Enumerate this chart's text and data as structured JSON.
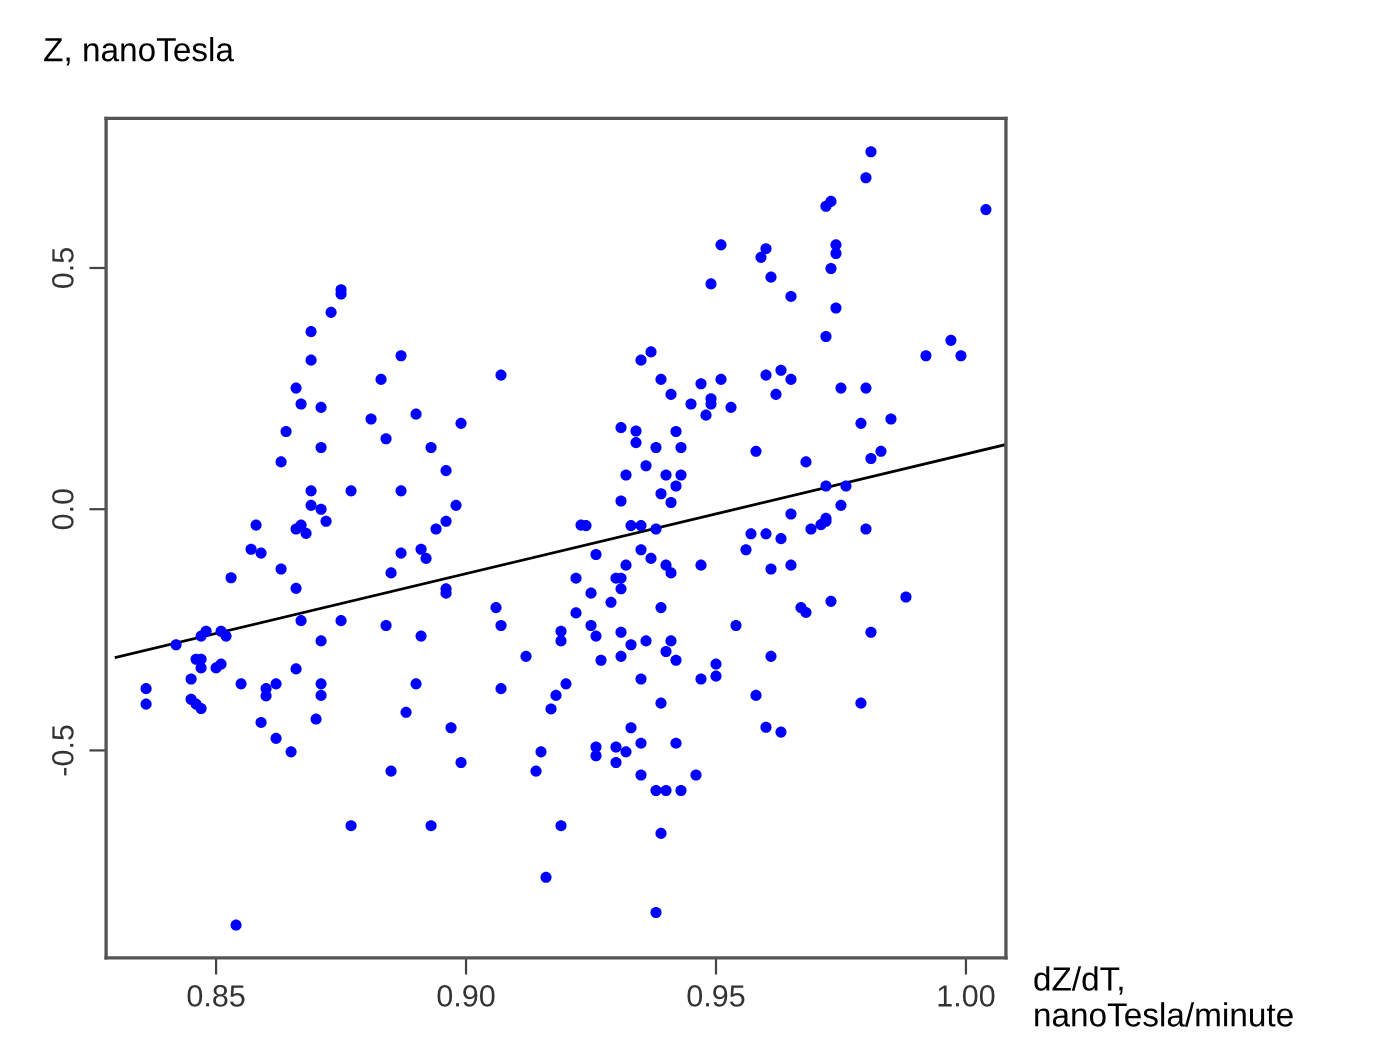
{
  "chart_data": {
    "type": "scatter",
    "xlabel": "dZ/dT,\nnanoTesla/minute",
    "ylabel": "Z, nanoTesla",
    "xlim": [
      0.828,
      1.008
    ],
    "ylim": [
      -0.93,
      0.81
    ],
    "xticks": [
      {
        "value": 0.85,
        "label": "0.85"
      },
      {
        "value": 0.9,
        "label": "0.90"
      },
      {
        "value": 0.95,
        "label": "0.95"
      },
      {
        "value": 1.0,
        "label": "1.00"
      }
    ],
    "yticks": [
      {
        "value": -0.5,
        "label": "-0.5"
      },
      {
        "value": 0,
        "label": "0.0"
      },
      0.5
    ],
    "grid": false,
    "marker": "circle",
    "series": [
      {
        "color": "#0000ff",
        "x": [
          0.875,
          0.875,
          0.873,
          0.869,
          0.869,
          0.887,
          0.883,
          0.907,
          0.866,
          0.867,
          0.871,
          0.881,
          0.89,
          0.899,
          0.864,
          0.871,
          0.884,
          0.893,
          0.863,
          0.896,
          0.869,
          0.877,
          0.887,
          0.869,
          0.871,
          0.898,
          0.981,
          0.98,
          1.004,
          0.972,
          0.973,
          0.951,
          0.96,
          0.959,
          0.974,
          0.974,
          0.973,
          0.961,
          0.949,
          0.965,
          0.974,
          0.972,
          0.992,
          0.997,
          0.999,
          0.935,
          0.937,
          0.939,
          0.947,
          0.951,
          0.96,
          0.963,
          0.965,
          0.941,
          0.949,
          0.949,
          0.945,
          0.953,
          0.948,
          0.962,
          0.975,
          0.98,
          0.979,
          0.985,
          0.931,
          0.934,
          0.934,
          0.942,
          0.938,
          0.943,
          0.958,
          0.981,
          0.983,
          0.968,
          0.932,
          0.936,
          0.94,
          0.943,
          0.942,
          0.939,
          0.941,
          0.931,
          0.972,
          0.976,
          0.975,
          0.965,
          0.972,
          0.858,
          0.866,
          0.867,
          0.868,
          0.872,
          0.857,
          0.859,
          0.863,
          0.853,
          0.866,
          0.896,
          0.894,
          0.887,
          0.891,
          0.892,
          0.885,
          0.896,
          0.896,
          0.906,
          0.907,
          0.922,
          0.922,
          0.923,
          0.867,
          0.875,
          0.884,
          0.891,
          0.871,
          0.848,
          0.847,
          0.851,
          0.852,
          0.842,
          0.846,
          0.847,
          0.847,
          0.85,
          0.851,
          0.866,
          0.845,
          0.855,
          0.86,
          0.862,
          0.86,
          0.871,
          0.871,
          0.89,
          0.907,
          0.919,
          0.919,
          0.912,
          0.92,
          0.918,
          0.917,
          0.836,
          0.836,
          0.845,
          0.846,
          0.847,
          0.859,
          0.862,
          0.865,
          0.87,
          0.888,
          0.897,
          0.899,
          0.885,
          0.915,
          0.914,
          0.877,
          0.893,
          0.919,
          0.916,
          0.854,
          0.924,
          0.933,
          0.935,
          0.938,
          0.957,
          0.96,
          0.963,
          0.956,
          0.969,
          0.971,
          0.972,
          0.98,
          0.926,
          0.935,
          0.937,
          0.932,
          0.94,
          0.941,
          0.947,
          0.961,
          0.965,
          0.93,
          0.931,
          0.931,
          0.925,
          0.929,
          0.939,
          0.967,
          0.968,
          0.973,
          0.988,
          0.925,
          0.926,
          0.931,
          0.954,
          0.981,
          0.933,
          0.936,
          0.941,
          0.94,
          0.942,
          0.927,
          0.931,
          0.961,
          0.95,
          0.95,
          0.947,
          0.935,
          0.958,
          0.939,
          0.979,
          0.96,
          0.963,
          0.933,
          0.926,
          0.926,
          0.93,
          0.93,
          0.932,
          0.935,
          0.942,
          0.935,
          0.946,
          0.938,
          0.94,
          0.943,
          0.939,
          0.938
        ],
        "values": [
          0.455,
          0.446,
          0.408,
          0.368,
          0.309,
          0.318,
          0.269,
          0.278,
          0.251,
          0.218,
          0.211,
          0.187,
          0.197,
          0.178,
          0.161,
          0.128,
          0.146,
          0.128,
          0.098,
          0.08,
          0.038,
          0.038,
          0.038,
          0.008,
          0.0,
          0.008,
          0.741,
          0.687,
          0.621,
          0.628,
          0.638,
          0.548,
          0.54,
          0.522,
          0.548,
          0.53,
          0.499,
          0.481,
          0.467,
          0.441,
          0.417,
          0.358,
          0.318,
          0.35,
          0.318,
          0.309,
          0.326,
          0.269,
          0.26,
          0.269,
          0.278,
          0.288,
          0.269,
          0.238,
          0.229,
          0.218,
          0.218,
          0.211,
          0.195,
          0.238,
          0.251,
          0.251,
          0.178,
          0.187,
          0.169,
          0.162,
          0.138,
          0.161,
          0.128,
          0.128,
          0.12,
          0.105,
          0.12,
          0.098,
          0.071,
          0.09,
          0.071,
          0.071,
          0.048,
          0.032,
          0.014,
          0.017,
          0.048,
          0.048,
          0.008,
          -0.01,
          -0.019,
          -0.033,
          -0.041,
          -0.033,
          -0.05,
          -0.025,
          -0.083,
          -0.091,
          -0.124,
          -0.142,
          -0.164,
          -0.025,
          -0.041,
          -0.091,
          -0.083,
          -0.102,
          -0.132,
          -0.165,
          -0.174,
          -0.204,
          -0.241,
          -0.143,
          -0.215,
          -0.033,
          -0.231,
          -0.231,
          -0.241,
          -0.263,
          -0.273,
          -0.253,
          -0.263,
          -0.253,
          -0.263,
          -0.281,
          -0.311,
          -0.311,
          -0.329,
          -0.329,
          -0.321,
          -0.331,
          -0.352,
          -0.362,
          -0.372,
          -0.362,
          -0.387,
          -0.362,
          -0.386,
          -0.362,
          -0.372,
          -0.253,
          -0.273,
          -0.305,
          -0.362,
          -0.386,
          -0.414,
          -0.372,
          -0.404,
          -0.394,
          -0.404,
          -0.413,
          -0.442,
          -0.475,
          -0.503,
          -0.435,
          -0.421,
          -0.453,
          -0.525,
          -0.543,
          -0.503,
          -0.543,
          -0.656,
          -0.656,
          -0.656,
          -0.763,
          -0.862,
          -0.034,
          -0.034,
          -0.034,
          -0.041,
          -0.051,
          -0.051,
          -0.061,
          -0.084,
          -0.041,
          -0.032,
          -0.025,
          -0.041,
          -0.094,
          -0.084,
          -0.102,
          -0.116,
          -0.116,
          -0.132,
          -0.116,
          -0.124,
          -0.116,
          -0.143,
          -0.143,
          -0.165,
          -0.174,
          -0.193,
          -0.204,
          -0.204,
          -0.214,
          -0.191,
          -0.182,
          -0.241,
          -0.263,
          -0.255,
          -0.241,
          -0.255,
          -0.281,
          -0.273,
          -0.273,
          -0.295,
          -0.313,
          -0.313,
          -0.305,
          -0.305,
          -0.321,
          -0.346,
          -0.352,
          -0.352,
          -0.386,
          -0.402,
          -0.402,
          -0.452,
          -0.462,
          -0.453,
          -0.493,
          -0.511,
          -0.493,
          -0.525,
          -0.503,
          -0.485,
          -0.485,
          -0.551,
          -0.551,
          -0.583,
          -0.583,
          -0.583,
          -0.672,
          -0.836
        ]
      },
      {
        "type": "line",
        "color": "#000000",
        "marker": "none",
        "x": [
          0.83,
          1.008
        ],
        "values": [
          -0.307,
          0.134
        ]
      }
    ]
  }
}
